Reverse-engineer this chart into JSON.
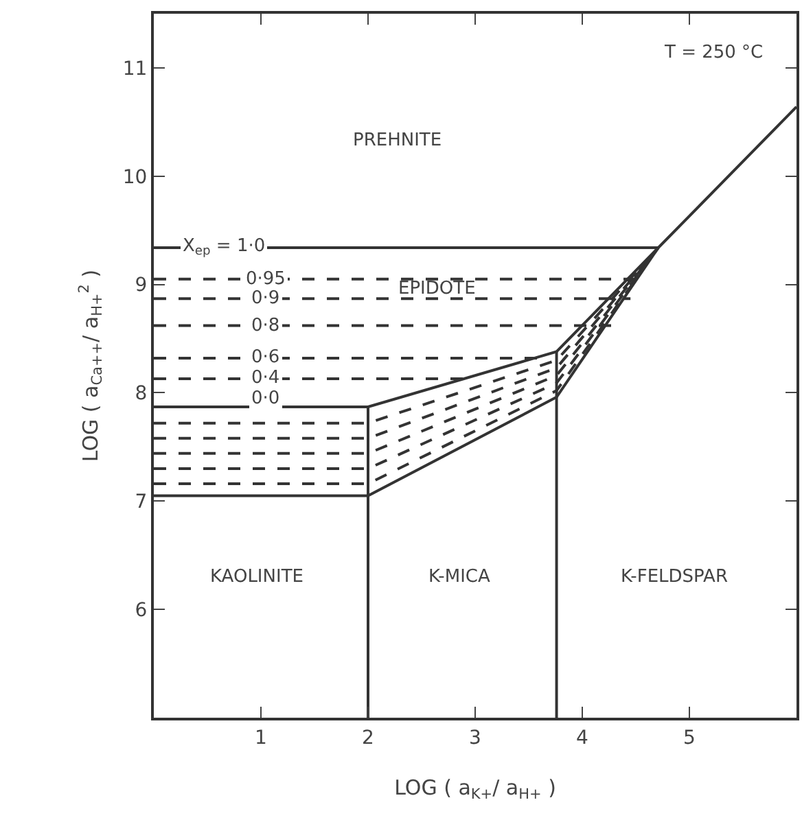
{
  "chart_data": {
    "type": "line",
    "xlabel": "LOG ( a$_{K+}$/ a$_{H+}$ )",
    "ylabel": "LOG ( a$_{Ca++}$/ a$_{H+}$$^{2}$ )",
    "xlim": [
      0,
      6
    ],
    "xticks": [
      1,
      2,
      3,
      4,
      5
    ],
    "ylim": [
      5,
      11.5
    ],
    "yticks": [
      6,
      7,
      8,
      9,
      10,
      11
    ],
    "grid": false,
    "marker": "none",
    "series": [
      {
        "color": "#333333",
        "line_style": "solid",
        "x": [
          0,
          4.71,
          6.0
        ],
        "values": [
          9.34,
          9.34,
          10.64
        ]
      },
      {
        "color": "#333333",
        "line_style": "solid",
        "x": [
          0,
          2,
          3.76,
          4.71
        ],
        "values": [
          7.87,
          7.87,
          8.38,
          9.34
        ]
      },
      {
        "color": "#333333",
        "line_style": "solid",
        "x": [
          0,
          2,
          3.76,
          4.71
        ],
        "values": [
          7.05,
          7.05,
          7.96,
          9.34
        ]
      },
      {
        "color": "#333333",
        "line_style": "solid",
        "x": [
          2,
          2
        ],
        "values": [
          5,
          7.87
        ]
      },
      {
        "color": "#333333",
        "line_style": "solid",
        "x": [
          3.76,
          3.76
        ],
        "values": [
          5,
          8.38
        ]
      },
      {
        "color": "#333333",
        "line_style": "dashed",
        "x": [
          0,
          4.58
        ],
        "values": [
          9.05,
          9.05
        ]
      },
      {
        "color": "#333333",
        "line_style": "dashed",
        "x": [
          0,
          4.45
        ],
        "values": [
          8.87,
          8.87
        ]
      },
      {
        "color": "#333333",
        "line_style": "dashed",
        "x": [
          0,
          4.3
        ],
        "values": [
          8.62,
          8.62
        ]
      },
      {
        "color": "#333333",
        "line_style": "dashed",
        "x": [
          0,
          3.6
        ],
        "values": [
          8.32,
          8.32
        ]
      },
      {
        "color": "#333333",
        "line_style": "dashed",
        "x": [
          0,
          2.9
        ],
        "values": [
          8.13,
          8.13
        ]
      },
      {
        "color": "#333333",
        "line_style": "dashed",
        "x": [
          0,
          2,
          3.76,
          4.71
        ],
        "values": [
          7.72,
          7.72,
          8.3,
          9.34
        ]
      },
      {
        "color": "#333333",
        "line_style": "dashed",
        "x": [
          0,
          2,
          3.76,
          4.71
        ],
        "values": [
          7.58,
          7.58,
          8.23,
          9.34
        ]
      },
      {
        "color": "#333333",
        "line_style": "dashed",
        "x": [
          0,
          2,
          3.76,
          4.71
        ],
        "values": [
          7.44,
          7.44,
          8.16,
          9.34
        ]
      },
      {
        "color": "#333333",
        "line_style": "dashed",
        "x": [
          0,
          2,
          3.76,
          4.71
        ],
        "values": [
          7.3,
          7.3,
          8.09,
          9.34
        ]
      },
      {
        "color": "#333333",
        "line_style": "dashed",
        "x": [
          0,
          2,
          3.76,
          4.71
        ],
        "values": [
          7.16,
          7.16,
          8.02,
          9.34
        ]
      }
    ],
    "annotations": [
      "T = 250 °C",
      "PREHNITE",
      "EPIDOTE",
      "KAOLINITE",
      "K-MICA",
      "K-FELDSPAR",
      {
        "text": "X$_{ep}$ = 1·0",
        "y": 9.34
      },
      {
        "text": "0·95",
        "y": 9.05
      },
      {
        "text": "0·9",
        "y": 8.87
      },
      {
        "text": "0·8",
        "y": 8.62
      },
      {
        "text": "0·6",
        "y": 8.32
      },
      {
        "text": "0·4",
        "y": 8.13
      },
      {
        "text": "0·0",
        "y": 7.95
      }
    ]
  }
}
